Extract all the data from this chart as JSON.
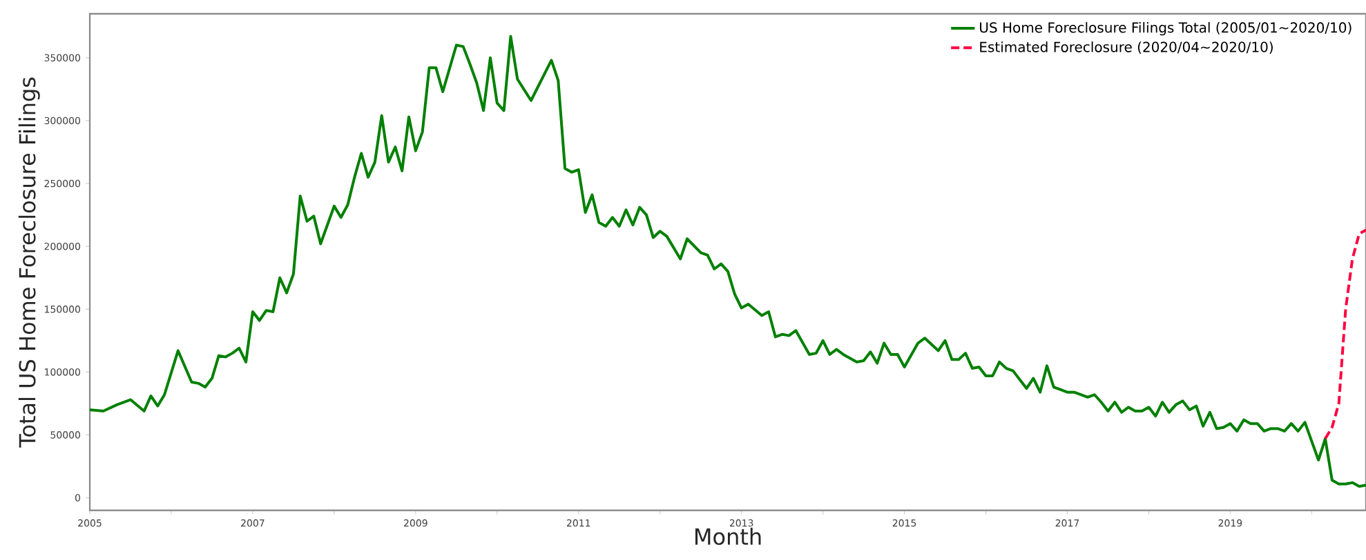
{
  "chart_data": {
    "type": "line",
    "xlabel": "Month",
    "ylabel": "Total US Home Foreclosure Filings",
    "xlim": [
      "2005-01",
      "2020-09"
    ],
    "ylim": [
      -10000,
      385000
    ],
    "xticks": [
      {
        "value": "2005",
        "label": "2005"
      },
      {
        "value": "2006",
        "label": null
      },
      {
        "value": "2007",
        "label": "2007"
      },
      {
        "value": "2008",
        "label": null
      },
      {
        "value": "2009",
        "label": "2009"
      },
      {
        "value": "2010",
        "label": null
      },
      {
        "value": "2011",
        "label": "2011"
      },
      {
        "value": "2012",
        "label": null
      },
      {
        "value": "2013",
        "label": "2013"
      },
      {
        "value": "2014",
        "label": null
      },
      {
        "value": "2015",
        "label": "2015"
      },
      {
        "value": "2016",
        "label": null
      },
      {
        "value": "2017",
        "label": "2017"
      },
      {
        "value": "2018",
        "label": null
      },
      {
        "value": "2019",
        "label": "2019"
      },
      {
        "value": "2020",
        "label": null
      }
    ],
    "yticks": [
      0,
      50000,
      100000,
      150000,
      200000,
      250000,
      300000,
      350000
    ],
    "legend": "top right",
    "grid": false,
    "series": [
      {
        "name": "US Home Foreclosure Filings Total (2005/01~2020/10)",
        "color": "#008000",
        "line_style": "solid",
        "x": [
          "2005-01",
          "2005-03",
          "2005-05",
          "2005-07",
          "2005-09",
          "2005-10",
          "2005-11",
          "2005-12",
          "2006-02",
          "2006-04",
          "2006-05",
          "2006-06",
          "2006-07",
          "2006-08",
          "2006-09",
          "2006-10",
          "2006-11",
          "2006-12",
          "2007-01",
          "2007-02",
          "2007-03",
          "2007-04",
          "2007-05",
          "2007-06",
          "2007-07",
          "2007-08",
          "2007-09",
          "2007-10",
          "2007-11",
          "2008-01",
          "2008-02",
          "2008-03",
          "2008-04",
          "2008-05",
          "2008-06",
          "2008-07",
          "2008-08",
          "2008-09",
          "2008-10",
          "2008-11",
          "2008-12",
          "2009-01",
          "2009-02",
          "2009-03",
          "2009-04",
          "2009-05",
          "2009-07",
          "2009-08",
          "2009-09",
          "2009-10",
          "2009-11",
          "2009-12",
          "2010-01",
          "2010-02",
          "2010-03",
          "2010-04",
          "2010-06",
          "2010-09",
          "2010-10",
          "2010-11",
          "2010-12",
          "2011-01",
          "2011-02",
          "2011-03",
          "2011-04",
          "2011-05",
          "2011-06",
          "2011-07",
          "2011-08",
          "2011-09",
          "2011-10",
          "2011-11",
          "2011-12",
          "2012-01",
          "2012-02",
          "2012-04",
          "2012-05",
          "2012-07",
          "2012-08",
          "2012-09",
          "2012-10",
          "2012-11",
          "2012-12",
          "2013-01",
          "2013-02",
          "2013-04",
          "2013-05",
          "2013-06",
          "2013-07",
          "2013-08",
          "2013-09",
          "2013-11",
          "2013-12",
          "2014-01",
          "2014-02",
          "2014-03",
          "2014-04",
          "2014-06",
          "2014-07",
          "2014-08",
          "2014-09",
          "2014-10",
          "2014-11",
          "2014-12",
          "2015-01",
          "2015-03",
          "2015-04",
          "2015-06",
          "2015-07",
          "2015-08",
          "2015-09",
          "2015-10",
          "2015-11",
          "2015-12",
          "2016-01",
          "2016-02",
          "2016-03",
          "2016-04",
          "2016-05",
          "2016-07",
          "2016-08",
          "2016-09",
          "2016-10",
          "2016-11",
          "2016-12",
          "2017-01",
          "2017-02",
          "2017-04",
          "2017-05",
          "2017-06",
          "2017-07",
          "2017-08",
          "2017-09",
          "2017-10",
          "2017-11",
          "2017-12",
          "2018-01",
          "2018-02",
          "2018-03",
          "2018-04",
          "2018-05",
          "2018-06",
          "2018-07",
          "2018-08",
          "2018-09",
          "2018-10",
          "2018-11",
          "2018-12",
          "2019-01",
          "2019-02",
          "2019-03",
          "2019-04",
          "2019-05",
          "2019-06",
          "2019-07",
          "2019-08",
          "2019-09",
          "2019-10",
          "2019-11",
          "2019-12",
          "2020-02",
          "2020-03",
          "2020-04",
          "2020-05",
          "2020-06",
          "2020-07",
          "2020-08",
          "2020-09"
        ],
        "values": [
          70000,
          69000,
          74000,
          78000,
          69000,
          81000,
          73000,
          82000,
          117000,
          92000,
          91000,
          88000,
          95000,
          113000,
          112000,
          115000,
          119000,
          108000,
          148000,
          141000,
          149000,
          148000,
          175000,
          163000,
          178000,
          240000,
          220000,
          224000,
          202000,
          232000,
          223000,
          233000,
          255000,
          274000,
          255000,
          267000,
          304000,
          267000,
          279000,
          260000,
          303000,
          276000,
          291000,
          342000,
          342000,
          323000,
          360000,
          359000,
          345000,
          330000,
          308000,
          350000,
          314000,
          308000,
          367000,
          333000,
          316000,
          348000,
          332000,
          262000,
          259000,
          261000,
          227000,
          241000,
          219000,
          216000,
          223000,
          216000,
          229000,
          217000,
          231000,
          225000,
          207000,
          212000,
          208000,
          190000,
          206000,
          195000,
          193000,
          182000,
          186000,
          180000,
          162000,
          151000,
          154000,
          145000,
          148000,
          128000,
          130000,
          129000,
          133000,
          114000,
          115000,
          125000,
          114000,
          118000,
          114000,
          108000,
          109000,
          116000,
          107000,
          123000,
          114000,
          114000,
          104000,
          123000,
          127000,
          117000,
          125000,
          110000,
          110000,
          115000,
          103000,
          104000,
          97000,
          97000,
          108000,
          103000,
          101000,
          87000,
          95000,
          84000,
          105000,
          88000,
          86000,
          84000,
          84000,
          80000,
          82000,
          76000,
          69000,
          76000,
          68000,
          72000,
          69000,
          69000,
          72000,
          65000,
          76000,
          68000,
          74000,
          77000,
          70000,
          73000,
          57000,
          68000,
          55000,
          56000,
          59000,
          53000,
          62000,
          59000,
          59000,
          53000,
          55000,
          55000,
          53000,
          59000,
          53000,
          60000,
          30000,
          47000,
          14000,
          11000,
          11000,
          12000,
          9000,
          10000
        ]
      },
      {
        "name": "Estimated Foreclosure (2020/04~2020/10)",
        "color": "#ff0040",
        "line_style": "dashed",
        "x": [
          "2020-03",
          "2020-04",
          "2020-05",
          "2020-06",
          "2020-07",
          "2020-08",
          "2020-09"
        ],
        "values": [
          47000,
          56000,
          75000,
          150000,
          190000,
          210000,
          213000
        ]
      }
    ]
  }
}
